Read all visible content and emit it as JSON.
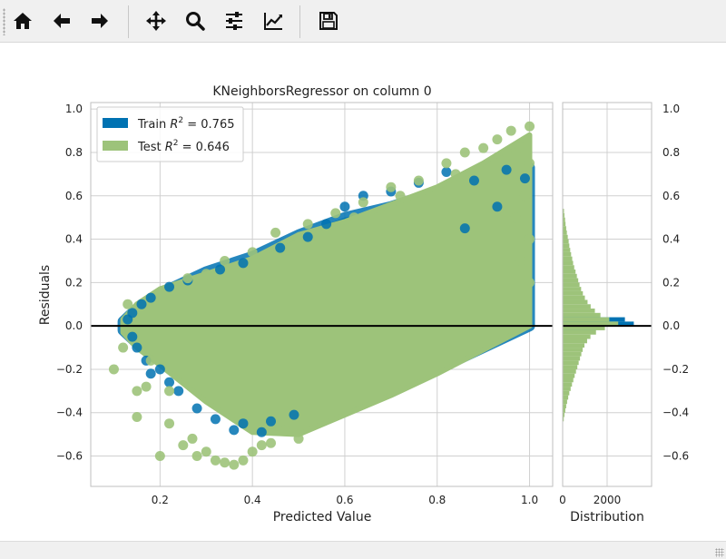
{
  "toolbar": {
    "buttons": [
      {
        "name": "home-button",
        "icon": "home-icon"
      },
      {
        "name": "back-button",
        "icon": "arrow-left-icon"
      },
      {
        "name": "forward-button",
        "icon": "arrow-right-icon"
      },
      {
        "name": "pan-button",
        "icon": "move-arrows-icon"
      },
      {
        "name": "zoom-button",
        "icon": "magnifier-icon"
      },
      {
        "name": "configure-subplots-button",
        "icon": "sliders-icon"
      },
      {
        "name": "edit-axis-button",
        "icon": "line-chart-icon"
      },
      {
        "name": "save-button",
        "icon": "floppy-disk-icon"
      }
    ]
  },
  "chart_data": {
    "type": "scatter",
    "title": "KNeighborsRegressor on column 0",
    "xlabel": "Predicted Value",
    "ylabel": "Residuals",
    "xlim": [
      0.05,
      1.05
    ],
    "ylim": [
      -0.74,
      1.03
    ],
    "xticks": [
      "0.2",
      "0.4",
      "0.6",
      "0.8",
      "1.0"
    ],
    "yticks": [
      "1.0",
      "0.8",
      "0.6",
      "0.4",
      "0.2",
      "0.0",
      "−0.2",
      "−0.4",
      "−0.6"
    ],
    "grid": true,
    "zero_line": 0.0,
    "legend": {
      "placement": "top-left",
      "entries": [
        {
          "prefix": "Train ",
          "r2": "R",
          "sup": "2",
          "value": " = 0.765"
        },
        {
          "prefix": "Test ",
          "r2": "R",
          "sup": "2",
          "value": " = 0.646"
        }
      ]
    },
    "colors": {
      "train": "#0072b2",
      "test": "#9dc37a",
      "zero_line": "#000000",
      "grid": "#d0d0d0"
    },
    "series": [
      {
        "name": "Train",
        "envelope": {
          "x": [
            0.12,
            0.15,
            0.2,
            0.3,
            0.4,
            0.5,
            0.6,
            0.7,
            0.8,
            0.9,
            1.0
          ],
          "upper": [
            0.02,
            0.08,
            0.15,
            0.25,
            0.32,
            0.42,
            0.5,
            0.55,
            0.62,
            0.68,
            0.73
          ],
          "lower": [
            -0.02,
            -0.08,
            -0.15,
            -0.3,
            -0.45,
            -0.42,
            -0.35,
            -0.27,
            -0.2,
            -0.1,
            0.0
          ]
        },
        "points": [
          [
            0.13,
            0.03
          ],
          [
            0.14,
            0.06
          ],
          [
            0.16,
            0.1
          ],
          [
            0.18,
            0.13
          ],
          [
            0.22,
            0.18
          ],
          [
            0.26,
            0.21
          ],
          [
            0.33,
            0.26
          ],
          [
            0.38,
            0.29
          ],
          [
            0.46,
            0.36
          ],
          [
            0.52,
            0.41
          ],
          [
            0.56,
            0.47
          ],
          [
            0.6,
            0.55
          ],
          [
            0.64,
            0.6
          ],
          [
            0.7,
            0.62
          ],
          [
            0.76,
            0.66
          ],
          [
            0.82,
            0.71
          ],
          [
            0.88,
            0.67
          ],
          [
            0.95,
            0.72
          ],
          [
            0.99,
            0.68
          ],
          [
            0.24,
            -0.3
          ],
          [
            0.28,
            -0.38
          ],
          [
            0.32,
            -0.43
          ],
          [
            0.38,
            -0.45
          ],
          [
            0.44,
            -0.44
          ],
          [
            0.49,
            -0.41
          ],
          [
            0.36,
            -0.48
          ],
          [
            0.22,
            -0.26
          ],
          [
            0.18,
            -0.22
          ],
          [
            0.15,
            -0.1
          ],
          [
            0.14,
            -0.05
          ],
          [
            0.17,
            -0.16
          ],
          [
            0.2,
            -0.2
          ],
          [
            0.42,
            -0.49
          ],
          [
            0.86,
            0.45
          ],
          [
            0.93,
            0.55
          ]
        ]
      },
      {
        "name": "Test",
        "envelope": {
          "x": [
            0.12,
            0.15,
            0.2,
            0.3,
            0.4,
            0.5,
            0.6,
            0.7,
            0.8,
            0.9,
            1.0
          ],
          "upper": [
            0.03,
            0.1,
            0.17,
            0.24,
            0.31,
            0.42,
            0.48,
            0.56,
            0.64,
            0.75,
            0.88
          ],
          "lower": [
            -0.03,
            -0.1,
            -0.18,
            -0.35,
            -0.49,
            -0.5,
            -0.41,
            -0.32,
            -0.22,
            -0.11,
            0.0
          ]
        },
        "points": [
          [
            0.1,
            -0.2
          ],
          [
            0.12,
            -0.1
          ],
          [
            0.13,
            0.1
          ],
          [
            0.15,
            -0.42
          ],
          [
            0.15,
            -0.3
          ],
          [
            0.2,
            -0.6
          ],
          [
            0.22,
            -0.45
          ],
          [
            0.25,
            -0.55
          ],
          [
            0.28,
            -0.6
          ],
          [
            0.32,
            -0.62
          ],
          [
            0.34,
            -0.63
          ],
          [
            0.36,
            -0.64
          ],
          [
            0.38,
            -0.62
          ],
          [
            0.4,
            -0.58
          ],
          [
            0.44,
            -0.54
          ],
          [
            0.5,
            -0.52
          ],
          [
            0.18,
            -0.16
          ],
          [
            0.22,
            -0.3
          ],
          [
            0.45,
            0.43
          ],
          [
            0.52,
            0.47
          ],
          [
            0.58,
            0.52
          ],
          [
            0.64,
            0.57
          ],
          [
            0.7,
            0.64
          ],
          [
            0.76,
            0.67
          ],
          [
            0.82,
            0.75
          ],
          [
            0.86,
            0.8
          ],
          [
            0.9,
            0.82
          ],
          [
            0.93,
            0.86
          ],
          [
            0.96,
            0.9
          ],
          [
            1.0,
            0.92
          ],
          [
            0.98,
            0.82
          ],
          [
            0.95,
            0.8
          ],
          [
            1.0,
            0.75
          ],
          [
            0.99,
            0.6
          ],
          [
            0.97,
            0.5
          ],
          [
            1.0,
            0.4
          ],
          [
            0.62,
            0.5
          ],
          [
            0.72,
            0.6
          ],
          [
            0.84,
            0.7
          ],
          [
            0.3,
            0.24
          ],
          [
            0.26,
            0.22
          ],
          [
            0.34,
            0.3
          ],
          [
            0.4,
            0.34
          ],
          [
            0.98,
            0.3
          ],
          [
            1.0,
            0.2
          ],
          [
            0.17,
            -0.28
          ],
          [
            0.27,
            -0.52
          ],
          [
            0.42,
            -0.55
          ],
          [
            0.47,
            -0.48
          ],
          [
            0.3,
            -0.58
          ]
        ]
      }
    ]
  },
  "histogram": {
    "xlabel": "Distribution",
    "xticks": [
      "0",
      "2000"
    ],
    "yticks": [
      "1.0",
      "0.8",
      "0.6",
      "0.4",
      "0.2",
      "0.0",
      "−0.2",
      "−0.4",
      "−0.6"
    ],
    "xlim": [
      0,
      4000
    ],
    "bin_width": 0.02,
    "train_bins": [
      {
        "y": 0.02,
        "count": 2800
      },
      {
        "y": 0.0,
        "count": 3200
      },
      {
        "y": -0.02,
        "count": 1500
      }
    ],
    "test_bins": [
      {
        "y": 0.52,
        "count": 60
      },
      {
        "y": 0.5,
        "count": 80
      },
      {
        "y": 0.48,
        "count": 110
      },
      {
        "y": 0.46,
        "count": 130
      },
      {
        "y": 0.44,
        "count": 160
      },
      {
        "y": 0.42,
        "count": 190
      },
      {
        "y": 0.4,
        "count": 230
      },
      {
        "y": 0.38,
        "count": 270
      },
      {
        "y": 0.36,
        "count": 300
      },
      {
        "y": 0.34,
        "count": 340
      },
      {
        "y": 0.32,
        "count": 380
      },
      {
        "y": 0.3,
        "count": 430
      },
      {
        "y": 0.28,
        "count": 470
      },
      {
        "y": 0.26,
        "count": 520
      },
      {
        "y": 0.24,
        "count": 580
      },
      {
        "y": 0.22,
        "count": 640
      },
      {
        "y": 0.2,
        "count": 700
      },
      {
        "y": 0.18,
        "count": 760
      },
      {
        "y": 0.16,
        "count": 830
      },
      {
        "y": 0.14,
        "count": 910
      },
      {
        "y": 0.12,
        "count": 1000
      },
      {
        "y": 0.1,
        "count": 1120
      },
      {
        "y": 0.08,
        "count": 1260
      },
      {
        "y": 0.06,
        "count": 1450
      },
      {
        "y": 0.04,
        "count": 1700
      },
      {
        "y": 0.02,
        "count": 2100
      },
      {
        "y": 0.0,
        "count": 2500
      },
      {
        "y": -0.02,
        "count": 1900
      },
      {
        "y": -0.04,
        "count": 1500
      },
      {
        "y": -0.06,
        "count": 1250
      },
      {
        "y": -0.08,
        "count": 1100
      },
      {
        "y": -0.1,
        "count": 980
      },
      {
        "y": -0.12,
        "count": 900
      },
      {
        "y": -0.14,
        "count": 840
      },
      {
        "y": -0.16,
        "count": 780
      },
      {
        "y": -0.18,
        "count": 720
      },
      {
        "y": -0.2,
        "count": 660
      },
      {
        "y": -0.22,
        "count": 600
      },
      {
        "y": -0.24,
        "count": 540
      },
      {
        "y": -0.26,
        "count": 480
      },
      {
        "y": -0.28,
        "count": 420
      },
      {
        "y": -0.3,
        "count": 360
      },
      {
        "y": -0.32,
        "count": 300
      },
      {
        "y": -0.34,
        "count": 250
      },
      {
        "y": -0.36,
        "count": 200
      },
      {
        "y": -0.38,
        "count": 160
      },
      {
        "y": -0.4,
        "count": 120
      },
      {
        "y": -0.42,
        "count": 80
      },
      {
        "y": -0.44,
        "count": 50
      }
    ]
  }
}
